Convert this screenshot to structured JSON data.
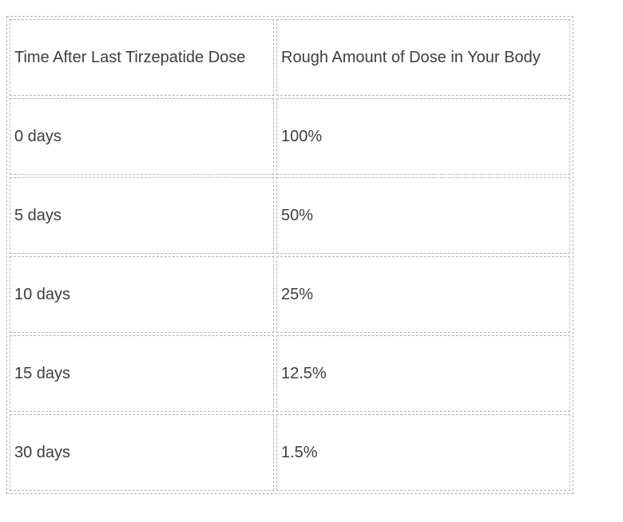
{
  "table": {
    "headers": {
      "time": "Time After Last Tirzepatide Dose",
      "amount": "Rough Amount of Dose in Your Body"
    },
    "rows": [
      {
        "time": "0 days",
        "amount": "100%"
      },
      {
        "time": "5 days",
        "amount": "50%"
      },
      {
        "time": "10 days",
        "amount": "25%"
      },
      {
        "time": "15 days",
        "amount": "12.5%"
      },
      {
        "time": "30 days",
        "amount": "1.5%"
      }
    ]
  },
  "colors": {
    "text": "#3d3d3d",
    "border": "#b5b5b5",
    "background": "#ffffff"
  }
}
